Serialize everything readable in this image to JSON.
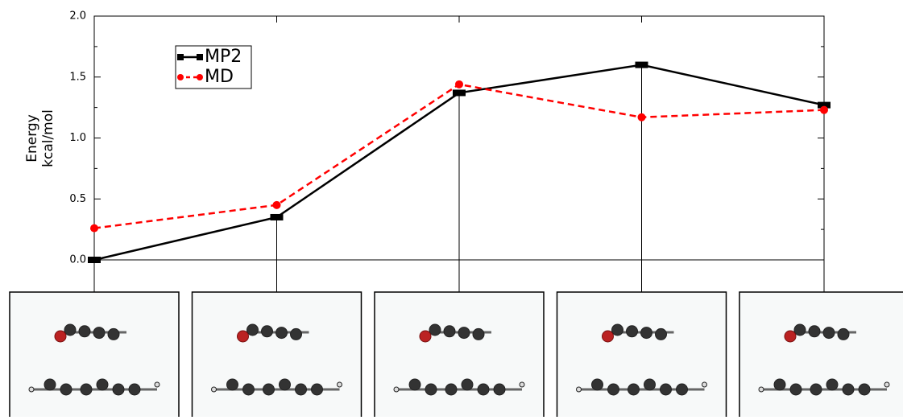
{
  "chart_data": {
    "type": "line",
    "y_label": [
      "Energy",
      "kcal/mol"
    ],
    "categories": [
      null,
      null,
      null,
      null,
      null
    ],
    "series": [
      {
        "name": "MP2",
        "color": "#000000",
        "marker": "square",
        "dashed": false,
        "values": [
          0.0,
          0.35,
          1.37,
          1.6,
          1.27
        ]
      },
      {
        "name": "MD",
        "color": "#ff0000",
        "marker": "circle",
        "dashed": true,
        "values": [
          0.26,
          0.45,
          1.44,
          1.17,
          1.23
        ]
      }
    ],
    "ylim": [
      0,
      2
    ],
    "yticks": [
      {
        "value": 0,
        "label": "0.0"
      },
      0.5,
      {
        "value": 1,
        "label": "1.0"
      },
      1.5,
      {
        "value": 2,
        "label": "2.0"
      }
    ],
    "legend": "upper-left"
  }
}
